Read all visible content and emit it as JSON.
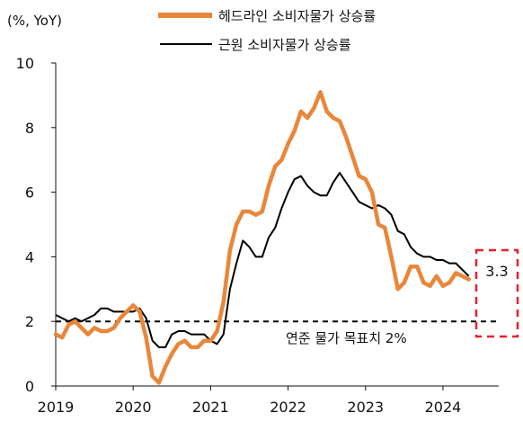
{
  "chart_data": {
    "type": "line",
    "unit_label": "(%, YoY)",
    "x_ticks": [
      "2019",
      "2020",
      "2021",
      "2022",
      "2023",
      "2024"
    ],
    "y_ticks": [
      "0",
      "2",
      "4",
      "6",
      "8",
      "10"
    ],
    "xlim": [
      2019.0,
      2024.72
    ],
    "ylim": [
      0,
      10
    ],
    "legend_position": "top-center",
    "series": [
      {
        "name": "헤드라인 소비자물가 상승률",
        "color": "#E8873A",
        "start": "2019-01",
        "frequency": "monthly",
        "values": [
          1.6,
          1.5,
          1.9,
          2.0,
          1.8,
          1.6,
          1.8,
          1.7,
          1.7,
          1.8,
          2.1,
          2.3,
          2.5,
          2.3,
          1.5,
          0.3,
          0.1,
          0.6,
          1.0,
          1.3,
          1.4,
          1.2,
          1.2,
          1.4,
          1.4,
          1.7,
          2.6,
          4.2,
          5.0,
          5.4,
          5.4,
          5.3,
          5.4,
          6.2,
          6.8,
          7.0,
          7.5,
          7.9,
          8.5,
          8.3,
          8.6,
          9.1,
          8.5,
          8.3,
          8.2,
          7.7,
          7.1,
          6.5,
          6.4,
          6.0,
          5.0,
          4.9,
          4.0,
          3.0,
          3.2,
          3.7,
          3.7,
          3.2,
          3.1,
          3.4,
          3.1,
          3.2,
          3.5,
          3.4,
          3.3
        ]
      },
      {
        "name": "근원 소비자물가 상승률",
        "color": "#000000",
        "start": "2019-01",
        "frequency": "monthly",
        "values": [
          2.2,
          2.1,
          2.0,
          2.1,
          2.0,
          2.1,
          2.2,
          2.4,
          2.4,
          2.3,
          2.3,
          2.3,
          2.3,
          2.4,
          2.1,
          1.4,
          1.2,
          1.2,
          1.6,
          1.7,
          1.7,
          1.6,
          1.6,
          1.6,
          1.4,
          1.3,
          1.6,
          3.0,
          3.8,
          4.5,
          4.3,
          4.0,
          4.0,
          4.6,
          4.9,
          5.5,
          6.0,
          6.4,
          6.5,
          6.2,
          6.0,
          5.9,
          5.9,
          6.3,
          6.6,
          6.3,
          6.0,
          5.7,
          5.6,
          5.5,
          5.6,
          5.5,
          5.3,
          4.8,
          4.7,
          4.3,
          4.1,
          4.0,
          4.0,
          3.9,
          3.9,
          3.8,
          3.8,
          3.6,
          3.4
        ]
      }
    ],
    "reference_line": {
      "value": 2,
      "label": "연준 물가 목표치 2%",
      "style": "dashed"
    },
    "annotation": {
      "label": "3.3",
      "value": 3.3,
      "box_color": "#E8212C"
    }
  }
}
